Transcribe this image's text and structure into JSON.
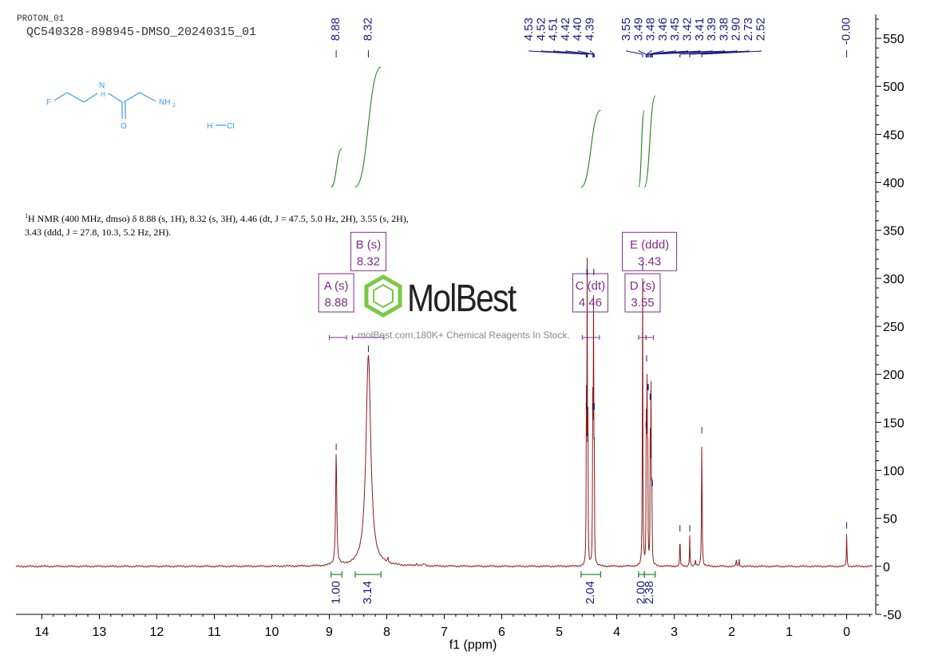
{
  "header": {
    "experiment": "PROTON_01",
    "sample": "QC540328-898945-DMSO_20240315_01"
  },
  "molecule": {
    "labels": {
      "f": "F",
      "n": "N",
      "h": "H",
      "nh2": "NH",
      "nh2_sub": "2",
      "o": "O",
      "hcl_h": "H",
      "hcl_cl": "Cl"
    }
  },
  "description": {
    "nucleus_sup": "1",
    "text_line1": "H NMR (400 MHz, dmso) δ 8.88 (s, 1H), 8.32 (s, 3H), 4.46 (dt, J = 47.5, 5.0 Hz, 2H), 3.55 (s, 2H),",
    "text_line2": "3.43 (ddd, J = 27.8, 10.3, 5.2 Hz, 2H)."
  },
  "watermark": {
    "brand": "MolBest",
    "tagline": "molBest.com,180K+ Chemical Reagents In Stock."
  },
  "colors": {
    "spectrum": "#8b1a1a",
    "integral": "#2e8b2e",
    "peak_label": "#1a1a80",
    "multiplet": "#7b2d8b",
    "molecule": "#3399ff",
    "watermark_green": "#7ac943"
  },
  "chart_data": {
    "type": "line",
    "xlabel": "f1 (ppm)",
    "x_ticks": [
      "14",
      "13",
      "12",
      "11",
      "10",
      "9",
      "8",
      "7",
      "6",
      "5",
      "4",
      "3",
      "2",
      "1",
      "0"
    ],
    "xlim": [
      14.45,
      -0.45
    ],
    "ylim": [
      -50,
      575
    ],
    "y_ticks": [
      "-50",
      "0",
      "50",
      "100",
      "150",
      "200",
      "250",
      "300",
      "350",
      "400",
      "450",
      "500",
      "550"
    ],
    "peak_labels": [
      "8.88",
      "8.32",
      "4.53",
      "4.52",
      "4.51",
      "4.42",
      "4.40",
      "4.39",
      "3.55",
      "3.49",
      "3.48",
      "3.46",
      "3.45",
      "3.42",
      "3.41",
      "3.39",
      "3.38",
      "2.90",
      "2.73",
      "2.52",
      "-0.00"
    ],
    "peaks": [
      {
        "ppm": 8.88,
        "height": 118,
        "width": 0.012
      },
      {
        "ppm": 8.32,
        "height": 220,
        "width": 0.05
      },
      {
        "ppm": 7.98,
        "height": 5,
        "width": 0.01
      },
      {
        "ppm": 7.48,
        "height": 2,
        "width": 0.02
      },
      {
        "ppm": 7.35,
        "height": 2,
        "width": 0.02
      },
      {
        "ppm": 4.528,
        "height": 160,
        "width": 0.004
      },
      {
        "ppm": 4.515,
        "height": 300,
        "width": 0.004
      },
      {
        "ppm": 4.502,
        "height": 160,
        "width": 0.004
      },
      {
        "ppm": 4.418,
        "height": 160,
        "width": 0.004
      },
      {
        "ppm": 4.405,
        "height": 300,
        "width": 0.004
      },
      {
        "ppm": 4.392,
        "height": 160,
        "width": 0.004
      },
      {
        "ppm": 3.55,
        "height": 305,
        "width": 0.005
      },
      {
        "ppm": 3.486,
        "height": 140,
        "width": 0.004
      },
      {
        "ppm": 3.475,
        "height": 210,
        "width": 0.004
      },
      {
        "ppm": 3.462,
        "height": 180,
        "width": 0.004
      },
      {
        "ppm": 3.415,
        "height": 170,
        "width": 0.004
      },
      {
        "ppm": 3.402,
        "height": 190,
        "width": 0.004
      },
      {
        "ppm": 3.388,
        "height": 80,
        "width": 0.004
      },
      {
        "ppm": 2.9,
        "height": 33,
        "width": 0.005
      },
      {
        "ppm": 2.73,
        "height": 33,
        "width": 0.005
      },
      {
        "ppm": 2.63,
        "height": 8,
        "width": 0.005
      },
      {
        "ppm": 2.52,
        "height": 135,
        "width": 0.006
      },
      {
        "ppm": 1.92,
        "height": 8,
        "width": 0.005
      },
      {
        "ppm": 1.87,
        "height": 8,
        "width": 0.005
      },
      {
        "ppm": 0.0,
        "height": 36,
        "width": 0.005
      }
    ],
    "integrals": [
      {
        "from": 8.97,
        "to": 8.78,
        "value": "1.00",
        "low": 395,
        "high": 435
      },
      {
        "from": 8.55,
        "to": 8.1,
        "value": "3.14",
        "low": 395,
        "high": 520
      },
      {
        "from": 4.62,
        "to": 4.28,
        "value": "2.04",
        "low": 395,
        "high": 475
      },
      {
        "from": 3.62,
        "to": 3.52,
        "value": "2.00",
        "low": 395,
        "high": 475
      },
      {
        "from": 3.52,
        "to": 3.33,
        "value": "2.38",
        "low": 395,
        "high": 490
      }
    ],
    "multiplets": [
      {
        "letter": "A (s)",
        "shift": "8.88",
        "from": 9.0,
        "to": 8.7,
        "center": 8.88,
        "y": 265
      },
      {
        "letter": "B (s)",
        "shift": "8.32",
        "from": 8.6,
        "to": 8.05,
        "center": 8.32,
        "y": 308
      },
      {
        "letter": "C (dt)",
        "shift": "4.46",
        "from": 4.6,
        "to": 4.3,
        "center": 4.46,
        "y": 265
      },
      {
        "letter": "D (s)",
        "shift": "3.55",
        "from": 3.62,
        "to": 3.49,
        "center": 3.55,
        "y": 265
      },
      {
        "letter": "E (ddd)",
        "shift": "3.43",
        "from": 3.49,
        "to": 3.36,
        "center": 3.43,
        "y": 308
      }
    ]
  }
}
